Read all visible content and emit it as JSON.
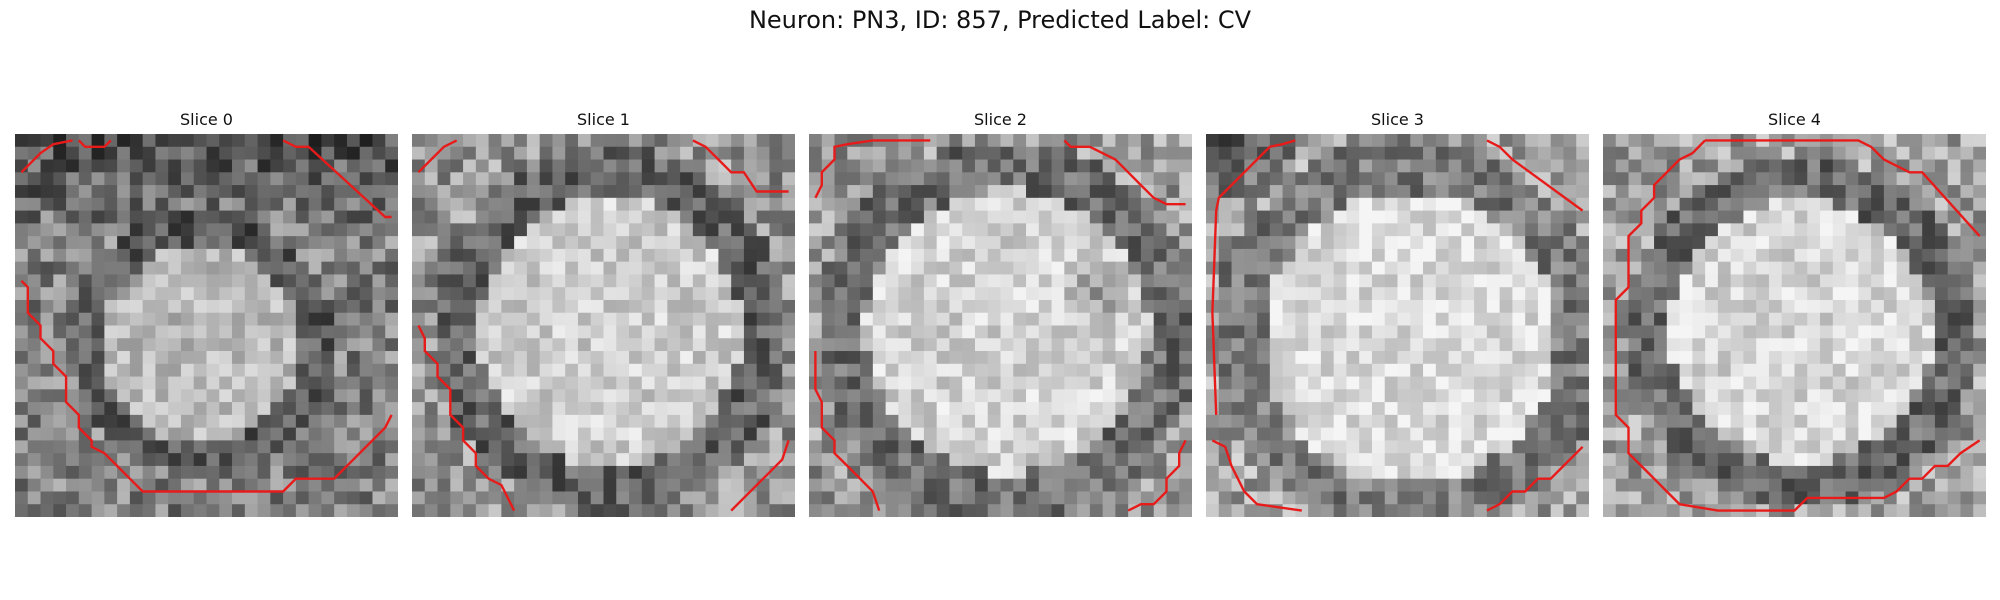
{
  "figure": {
    "title": "Neuron: PN3, ID: 857, Predicted Label: CV",
    "contour_color": "#e81b1b"
  },
  "panels": [
    {
      "title": "Slice 0",
      "contour": "ring",
      "brightness": "bright center with darker upper ring"
    },
    {
      "title": "Slice 1",
      "contour": "partial",
      "brightness": "bright oval cell with dark rim"
    },
    {
      "title": "Slice 2",
      "contour": "partial",
      "brightness": "bright cell with dark spot on right"
    },
    {
      "title": "Slice 3",
      "contour": "partial",
      "brightness": "bright cell with dark top-left corner"
    },
    {
      "title": "Slice 4",
      "contour": "full octagon",
      "brightness": "bright cell surrounded by dark rim"
    }
  ]
}
